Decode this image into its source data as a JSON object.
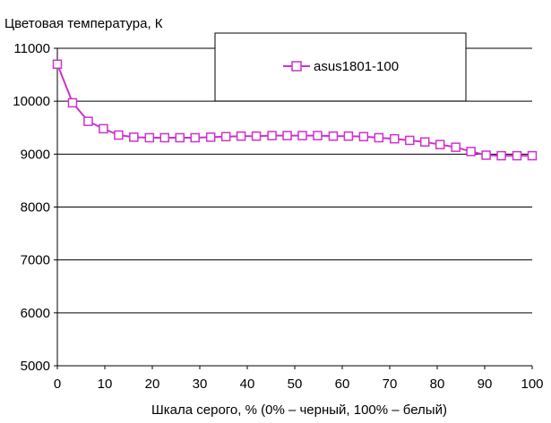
{
  "chart_data": {
    "type": "line",
    "title": "Цветовая температура, К",
    "xlabel": "Шкала серого, % (0% – черный, 100% – белый)",
    "ylabel": "",
    "xlim": [
      0,
      100
    ],
    "ylim": [
      5000,
      11000
    ],
    "x_ticks": [
      0,
      10,
      20,
      30,
      40,
      50,
      60,
      70,
      80,
      90,
      100
    ],
    "y_ticks": [
      5000,
      6000,
      7000,
      8000,
      9000,
      10000,
      11000
    ],
    "grid": "horizontal",
    "legend_position": "top",
    "series": [
      {
        "name": "asus1801-100",
        "color": "#cc33cc",
        "marker": "square",
        "x": [
          0,
          3.2,
          6.5,
          9.7,
          12.9,
          16.1,
          19.4,
          22.6,
          25.8,
          29.0,
          32.3,
          35.5,
          38.7,
          41.9,
          45.2,
          48.4,
          51.6,
          54.8,
          58.1,
          61.3,
          64.5,
          67.7,
          71.0,
          74.2,
          77.4,
          80.6,
          83.9,
          87.1,
          90.3,
          93.5,
          96.8,
          100
        ],
        "y": [
          10700,
          9970,
          9620,
          9480,
          9360,
          9320,
          9310,
          9310,
          9310,
          9310,
          9320,
          9330,
          9340,
          9340,
          9350,
          9350,
          9350,
          9350,
          9340,
          9340,
          9330,
          9310,
          9290,
          9260,
          9230,
          9180,
          9130,
          9050,
          8980,
          8970,
          8970,
          8970
        ]
      }
    ]
  }
}
